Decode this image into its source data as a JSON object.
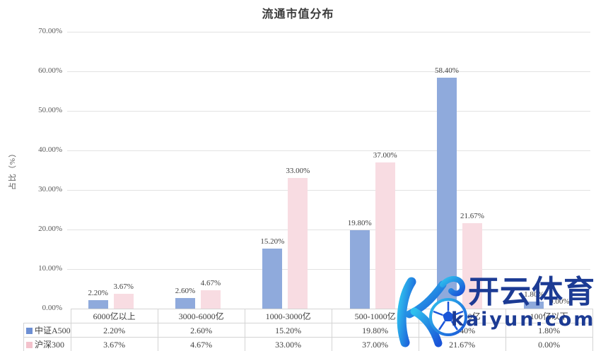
{
  "header": {
    "title": "流通市值分布"
  },
  "chart_data": {
    "type": "bar",
    "title": "流通市值分布",
    "xlabel": "",
    "ylabel": "占比（%）",
    "ylim": [
      0,
      70
    ],
    "grid": true,
    "legend_position": "table-left",
    "y_ticks": [
      "70.00%",
      "60.00%",
      "50.00%",
      "40.00%",
      "30.00%",
      "20.00%",
      "10.00%",
      "0.00%"
    ],
    "categories": [
      "6000亿以上",
      "3000-6000亿",
      "1000-3000亿",
      "500-1000亿",
      "100-500亿",
      "100亿以下"
    ],
    "series": [
      {
        "name": "中证A500",
        "color": "#8FAADC",
        "legend_color": "#6D8FD3",
        "values": [
          2.2,
          2.6,
          15.2,
          19.8,
          58.4,
          1.8
        ],
        "labels": [
          "2.20%",
          "2.60%",
          "15.20%",
          "19.80%",
          "58.40%",
          "1.80%"
        ]
      },
      {
        "name": "沪深300",
        "color": "#F8DCE2",
        "legend_color": "#F3C2CC",
        "values": [
          3.67,
          4.67,
          33.0,
          37.0,
          21.67,
          0.0
        ],
        "labels": [
          "3.67%",
          "4.67%",
          "33.00%",
          "37.00%",
          "21.67%",
          "0.00%"
        ]
      }
    ]
  },
  "watermark": {
    "logo_letter": "K",
    "ball_icon": "soccer-ball",
    "brand": "开云体育",
    "domain": "kaiyun.com",
    "colors": {
      "text": "#1C3B94",
      "gradient_start": "#2FC0EE",
      "gradient_end": "#1A55D8"
    }
  },
  "colors": {
    "grid": "#E2E2E2",
    "axis_text": "#595959",
    "table_border": "#D4D4D4",
    "title_text": "#3B3B3B"
  }
}
